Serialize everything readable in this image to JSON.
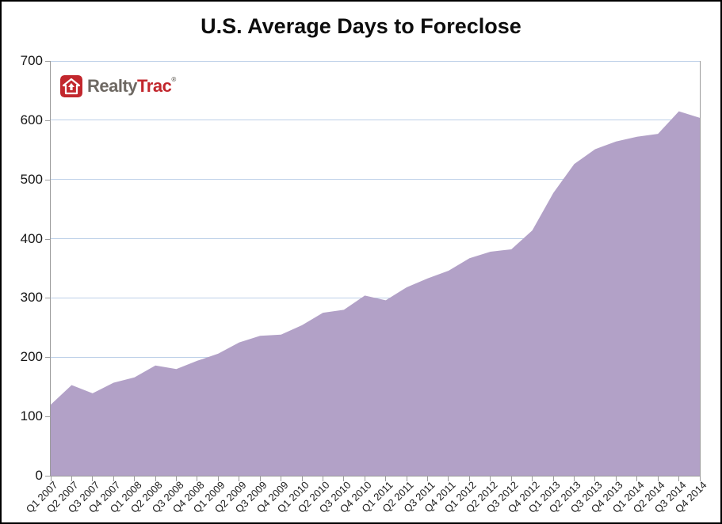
{
  "title": "U.S. Average Days to Foreclose",
  "logo": {
    "realty": "Realty",
    "trac": "Trac",
    "reg": "®"
  },
  "colors": {
    "area_fill": "#B2A1C7",
    "gridline": "#BDD0E8",
    "axis_line": "#9C9C9C",
    "tick": "#9C9C9C",
    "logo_red": "#C2272D",
    "logo_gray": "#6E6963",
    "title_text": "#0D0D0D",
    "label_text": "#1A1A1A"
  },
  "chart_data": {
    "type": "area",
    "title": "U.S. Average Days to Foreclose",
    "xlabel": "",
    "ylabel": "",
    "ylim": [
      0,
      700
    ],
    "ytick_interval": 100,
    "yticks": [
      0,
      100,
      200,
      300,
      400,
      500,
      600,
      700
    ],
    "grid": true,
    "legend": false,
    "series_name": "U.S. Average Days to Foreclose",
    "categories": [
      "Q1 2007",
      "Q2 2007",
      "Q3 2007",
      "Q4 2007",
      "Q1 2008",
      "Q2 2008",
      "Q3 2008",
      "Q4 2008",
      "Q1 2009",
      "Q2 2009",
      "Q3 2009",
      "Q4 2009",
      "Q1 2010",
      "Q2 2010",
      "Q3 2010",
      "Q4 2010",
      "Q1 2011",
      "Q2 2011",
      "Q3 2011",
      "Q4 2011",
      "Q1 2012",
      "Q2 2012",
      "Q3 2012",
      "Q4 2012",
      "Q1 2013",
      "Q2 2013",
      "Q3 2013",
      "Q4 2013",
      "Q1 2014",
      "Q2 2014",
      "Q3 2014",
      "Q4 2014"
    ],
    "values": [
      120,
      153,
      139,
      157,
      166,
      186,
      180,
      194,
      206,
      225,
      236,
      238,
      254,
      275,
      280,
      304,
      296,
      318,
      333,
      346,
      367,
      378,
      382,
      414,
      477,
      526,
      551,
      564,
      572,
      577,
      615,
      604
    ]
  }
}
